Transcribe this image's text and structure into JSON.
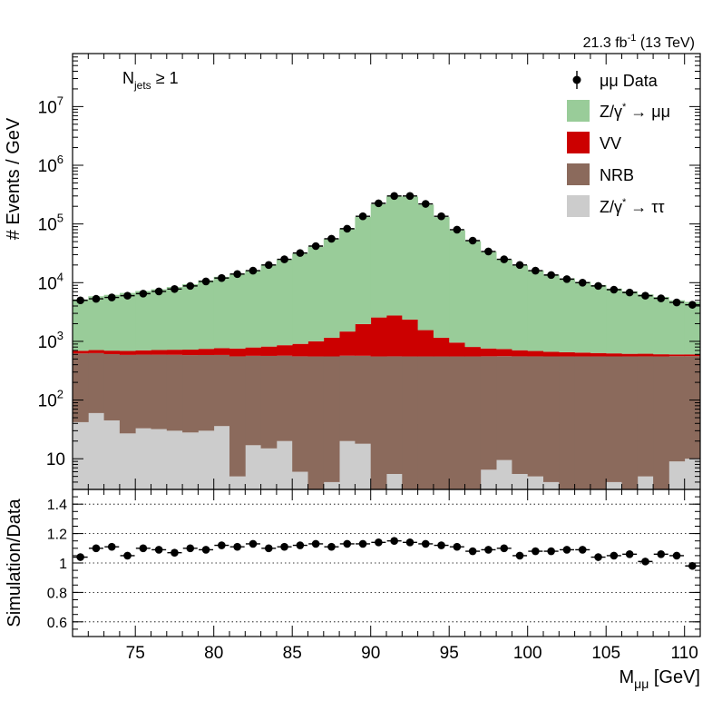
{
  "header": {
    "lumi_text": "21.3 fb",
    "lumi_sup": "-1",
    "energy_text": "(13 TeV)",
    "selection_main": "N",
    "selection_sub": "jets",
    "selection_cut": "≥ 1"
  },
  "legend": {
    "data": "μμ Data",
    "zmm_pre": "Z/γ",
    "zmm_sup": "*",
    "zmm_post": " → μμ",
    "vv": "VV",
    "nrb": "NRB",
    "ztt_pre": "Z/γ",
    "ztt_sup": "*",
    "ztt_post": " → ττ"
  },
  "chart_data": [
    {
      "type": "bar",
      "ylabel": "# Events / GeV",
      "xlim": [
        71,
        111
      ],
      "ylim": [
        3,
        80000000
      ],
      "yscale": "log",
      "y_tick_labels": [
        {
          "base": "10",
          "exp": "7",
          "value": 10000000
        },
        {
          "base": "10",
          "exp": "6",
          "value": 1000000
        },
        {
          "base": "10",
          "exp": "5",
          "value": 100000
        },
        {
          "base": "10",
          "exp": "4",
          "value": 10000
        },
        {
          "base": "10",
          "exp": "3",
          "value": 1000
        },
        {
          "base": "10",
          "exp": "2",
          "value": 100
        },
        {
          "base": "10",
          "exp": "",
          "value": 10
        }
      ],
      "legend_position": "top-right",
      "bin_width": 1,
      "x_centers": [
        71.5,
        72.5,
        73.5,
        74.5,
        75.5,
        76.5,
        77.5,
        78.5,
        79.5,
        80.5,
        81.5,
        82.5,
        83.5,
        84.5,
        85.5,
        86.5,
        87.5,
        88.5,
        89.5,
        90.5,
        91.5,
        92.5,
        93.5,
        94.5,
        95.5,
        96.5,
        97.5,
        98.5,
        99.5,
        100.5,
        101.5,
        102.5,
        103.5,
        104.5,
        105.5,
        106.5,
        107.5,
        108.5,
        109.5,
        110.5
      ],
      "series": [
        {
          "name": "Z/γ* → ττ",
          "color": "#cccccc",
          "values": [
            42,
            60,
            45,
            27,
            33,
            32,
            30,
            28,
            30,
            36,
            5,
            17,
            15,
            20,
            6,
            3,
            4,
            20,
            18,
            3,
            5.5,
            3,
            3,
            3,
            3,
            3,
            6.5,
            9.5,
            5.5,
            5,
            4,
            3,
            3,
            3,
            4,
            3,
            5,
            3,
            9,
            10
          ]
        },
        {
          "name": "NRB",
          "color": "#8b6a5c",
          "values": [
            580,
            570,
            560,
            560,
            560,
            560,
            560,
            555,
            555,
            550,
            550,
            550,
            550,
            550,
            550,
            550,
            550,
            550,
            550,
            550,
            550,
            550,
            550,
            550,
            550,
            550,
            550,
            550,
            550,
            550,
            550,
            550,
            550,
            550,
            550,
            550,
            550,
            550,
            550,
            550
          ]
        },
        {
          "name": "VV",
          "color": "#cc0000",
          "values": [
            70,
            80,
            90,
            100,
            110,
            120,
            130,
            140,
            160,
            180,
            200,
            220,
            250,
            290,
            350,
            450,
            600,
            900,
            1400,
            2000,
            2200,
            1800,
            1000,
            600,
            400,
            250,
            200,
            180,
            150,
            130,
            110,
            100,
            90,
            80,
            70,
            60,
            60,
            50,
            40,
            40
          ]
        },
        {
          "name": "Z/γ* → μμ",
          "color": "#99cc99",
          "values": [
            4500,
            5150,
            5500,
            6000,
            6500,
            7000,
            7700,
            8700,
            10200,
            11800,
            13500,
            15500,
            19500,
            24000,
            30500,
            40000,
            54000,
            80000,
            130000,
            215000,
            290000,
            290000,
            212000,
            130000,
            77000,
            50000,
            33000,
            24000,
            19000,
            15500,
            13000,
            11200,
            9700,
            8500,
            7300,
            6500,
            5700,
            5100,
            4400,
            4100
          ]
        },
        {
          "name": "μμ Data",
          "color": "#000000",
          "values": [
            5000,
            5300,
            5600,
            6000,
            6500,
            7100,
            7800,
            8800,
            10500,
            12000,
            14000,
            16000,
            20000,
            25000,
            32000,
            42000,
            56000,
            83000,
            135000,
            225000,
            300000,
            300000,
            220000,
            135000,
            80000,
            52000,
            34000,
            25000,
            20000,
            16000,
            13500,
            11500,
            10000,
            8800,
            7600,
            6800,
            6000,
            5400,
            4600,
            4200
          ]
        }
      ]
    },
    {
      "type": "scatter",
      "xlabel_main": "M",
      "xlabel_sub": "μμ",
      "xlabel_unit": " [GeV]",
      "ylabel": "Simulation/Data",
      "xlim": [
        71,
        111
      ],
      "ylim": [
        0.5,
        1.5
      ],
      "x_ticks": [
        "75",
        "80",
        "85",
        "90",
        "95",
        "100",
        "105",
        "110"
      ],
      "y_ticks": [
        "0.6",
        "0.8",
        "1",
        "1.2",
        "1.4"
      ],
      "grid": "horizontal dotted",
      "x": [
        71.5,
        72.5,
        73.5,
        74.5,
        75.5,
        76.5,
        77.5,
        78.5,
        79.5,
        80.5,
        81.5,
        82.5,
        83.5,
        84.5,
        85.5,
        86.5,
        87.5,
        88.5,
        89.5,
        90.5,
        91.5,
        92.5,
        93.5,
        94.5,
        95.5,
        96.5,
        97.5,
        98.5,
        99.5,
        100.5,
        101.5,
        102.5,
        103.5,
        104.5,
        105.5,
        106.5,
        107.5,
        108.5,
        109.5,
        110.5
      ],
      "y": [
        1.04,
        1.1,
        1.11,
        1.05,
        1.1,
        1.09,
        1.07,
        1.1,
        1.09,
        1.12,
        1.11,
        1.13,
        1.1,
        1.11,
        1.12,
        1.13,
        1.11,
        1.13,
        1.13,
        1.14,
        1.15,
        1.14,
        1.13,
        1.12,
        1.11,
        1.08,
        1.09,
        1.1,
        1.05,
        1.08,
        1.08,
        1.09,
        1.09,
        1.04,
        1.05,
        1.06,
        1.01,
        1.06,
        1.05,
        0.98
      ],
      "y_err": [
        0.01,
        0.01,
        0.01,
        0.01,
        0.01,
        0.01,
        0.01,
        0.01,
        0.01,
        0.01,
        0.01,
        0.01,
        0.008,
        0.008,
        0.008,
        0.008,
        0.006,
        0.006,
        0.005,
        0.004,
        0.004,
        0.004,
        0.005,
        0.006,
        0.006,
        0.008,
        0.008,
        0.01,
        0.01,
        0.01,
        0.01,
        0.01,
        0.01,
        0.012,
        0.012,
        0.012,
        0.012,
        0.014,
        0.014,
        0.014
      ]
    }
  ]
}
